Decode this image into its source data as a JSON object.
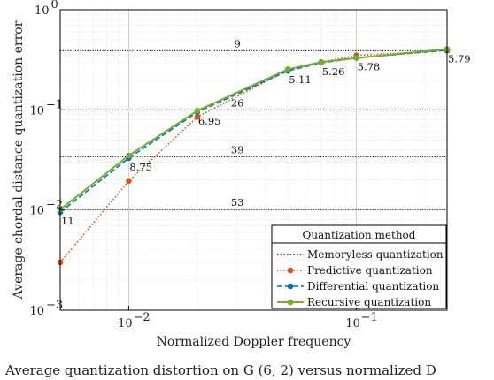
{
  "chart_data": {
    "type": "line",
    "title": "",
    "xlabel": "Normalized Doppler frequency",
    "ylabel": "Average chordal distance quantization error",
    "x_scale": "log",
    "y_scale": "log",
    "xlim": [
      0.005,
      0.25
    ],
    "ylim": [
      0.001,
      1
    ],
    "x_ticks": [
      {
        "value": 0.01,
        "label": "10",
        "exp": "−2"
      },
      {
        "value": 0.1,
        "label": "10",
        "exp": "−1"
      }
    ],
    "y_ticks": [
      {
        "value": 0.001,
        "label": "10",
        "exp": "−3"
      },
      {
        "value": 0.01,
        "label": "10",
        "exp": "−2"
      },
      {
        "value": 0.1,
        "label": "10",
        "exp": "−1"
      },
      {
        "value": 1,
        "label": "10",
        "exp": "0"
      }
    ],
    "grid": true,
    "legend": {
      "title": "Quantization method",
      "position": "bottom-right"
    },
    "memoryless_levels": [
      {
        "y": 0.39,
        "label": "9"
      },
      {
        "y": 0.1,
        "label": "26"
      },
      {
        "y": 0.034,
        "label": "39"
      },
      {
        "y": 0.0101,
        "label": "53"
      }
    ],
    "series": [
      {
        "name": "Memoryless quantization",
        "style": "dotted",
        "color": "#000000",
        "marker": "none",
        "x": [],
        "y": []
      },
      {
        "name": "Predictive quantization",
        "style": "dotted",
        "color": "#d95319",
        "marker": "circle",
        "x": [
          0.005,
          0.01,
          0.02,
          0.05,
          0.07,
          0.1,
          0.25
        ],
        "y": [
          0.003,
          0.0195,
          0.085,
          0.25,
          0.3,
          0.35,
          0.39
        ]
      },
      {
        "name": "Differential quantization",
        "style": "dashed",
        "color": "#0072bd",
        "marker": "circle",
        "x": [
          0.005,
          0.01,
          0.02,
          0.05,
          0.07,
          0.1,
          0.25
        ],
        "y": [
          0.0095,
          0.033,
          0.095,
          0.245,
          0.295,
          0.33,
          0.395
        ]
      },
      {
        "name": "Recursive quantization",
        "style": "solid",
        "color": "#77ac30",
        "marker": "circle",
        "x": [
          0.005,
          0.01,
          0.02,
          0.05,
          0.07,
          0.1,
          0.25
        ],
        "y": [
          0.0101,
          0.035,
          0.098,
          0.255,
          0.3,
          0.33,
          0.405
        ]
      }
    ],
    "annotations": [
      {
        "text": "11",
        "x": 0.005,
        "y": 0.0095
      },
      {
        "text": "8.75",
        "x": 0.01,
        "y": 0.033
      },
      {
        "text": "6.95",
        "x": 0.02,
        "y": 0.095
      },
      {
        "text": "5.11",
        "x": 0.05,
        "y": 0.245
      },
      {
        "text": "5.26",
        "x": 0.07,
        "y": 0.295
      },
      {
        "text": "5.78",
        "x": 0.1,
        "y": 0.33
      },
      {
        "text": "5.79",
        "x": 0.25,
        "y": 0.395
      }
    ]
  },
  "caption": "Average quantization distortion on G (6, 2) versus normalized D"
}
